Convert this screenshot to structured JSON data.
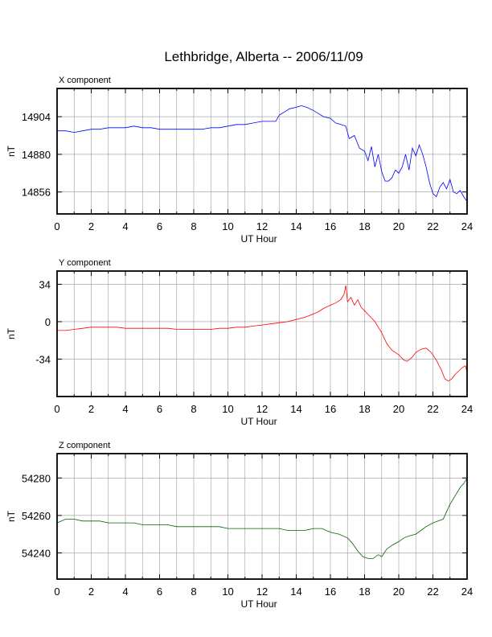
{
  "title": "Lethbridge, Alberta -- 2006/11/09",
  "chart_data": [
    {
      "type": "line",
      "panel_label": "X component",
      "xlabel": "UT Hour",
      "ylabel": "nT",
      "xlim": [
        0,
        24
      ],
      "ylim": [
        14842,
        14922
      ],
      "xticks": [
        0,
        2,
        4,
        6,
        8,
        10,
        12,
        14,
        16,
        18,
        20,
        22,
        24
      ],
      "yticks": [
        14856,
        14880,
        14904
      ],
      "grid": true,
      "color": "#0000ff",
      "x": [
        0,
        0.5,
        1,
        1.5,
        2,
        2.5,
        3,
        3.5,
        4,
        4.5,
        5,
        5.5,
        6,
        6.5,
        7,
        7.5,
        8,
        8.5,
        9,
        9.5,
        10,
        10.5,
        11,
        11.5,
        12,
        12.5,
        12.8,
        13,
        13.3,
        13.6,
        14,
        14.3,
        14.6,
        15,
        15.3,
        15.6,
        16,
        16.3,
        16.6,
        16.9,
        17.1,
        17.4,
        17.7,
        18,
        18.2,
        18.4,
        18.6,
        18.8,
        19.0,
        19.2,
        19.4,
        19.6,
        19.8,
        20.0,
        20.2,
        20.4,
        20.6,
        20.8,
        21.0,
        21.2,
        21.4,
        21.6,
        21.8,
        22.0,
        22.2,
        22.4,
        22.6,
        22.8,
        23.0,
        23.2,
        23.4,
        23.6,
        23.8,
        24
      ],
      "y": [
        14895,
        14895,
        14894,
        14895,
        14896,
        14896,
        14897,
        14897,
        14897,
        14898,
        14897,
        14897,
        14896,
        14896,
        14896,
        14896,
        14896,
        14896,
        14897,
        14897,
        14898,
        14899,
        14899,
        14900,
        14901,
        14901,
        14901,
        14905,
        14907,
        14909,
        14910,
        14911,
        14910,
        14908,
        14906,
        14904,
        14903,
        14900,
        14899,
        14898,
        14890,
        14892,
        14884,
        14882,
        14876,
        14885,
        14872,
        14880,
        14869,
        14863,
        14863,
        14865,
        14870,
        14868,
        14872,
        14880,
        14870,
        14884,
        14879,
        14886,
        14880,
        14872,
        14862,
        14855,
        14853,
        14859,
        14862,
        14858,
        14864,
        14856,
        14855,
        14857,
        14853,
        14850
      ]
    },
    {
      "type": "line",
      "panel_label": "Y component",
      "xlabel": "UT Hour",
      "ylabel": "nT",
      "xlim": [
        0,
        24
      ],
      "ylim": [
        -68,
        46
      ],
      "xticks": [
        0,
        2,
        4,
        6,
        8,
        10,
        12,
        14,
        16,
        18,
        20,
        22,
        24
      ],
      "yticks": [
        -34,
        0,
        34
      ],
      "grid": true,
      "color": "#ff0000",
      "x": [
        0,
        0.5,
        1,
        1.5,
        2,
        2.5,
        3,
        3.5,
        4,
        4.5,
        5,
        5.5,
        6,
        6.5,
        7,
        7.5,
        8,
        8.5,
        9,
        9.5,
        10,
        10.5,
        11,
        11.5,
        12,
        12.5,
        13,
        13.5,
        14,
        14.5,
        15,
        15.3,
        15.6,
        16,
        16.3,
        16.6,
        16.8,
        16.9,
        17.0,
        17.2,
        17.4,
        17.6,
        17.8,
        18.0,
        18.3,
        18.6,
        19.0,
        19.3,
        19.6,
        20.0,
        20.3,
        20.5,
        20.8,
        21.0,
        21.3,
        21.6,
        21.9,
        22.2,
        22.5,
        22.7,
        22.9,
        23.1,
        23.3,
        23.5,
        23.7,
        23.9,
        24
      ],
      "y": [
        -8,
        -8,
        -7,
        -6,
        -5,
        -5,
        -5,
        -5,
        -6,
        -6,
        -6,
        -6,
        -6,
        -6,
        -7,
        -7,
        -7,
        -7,
        -7,
        -6,
        -6,
        -5,
        -5,
        -4,
        -3,
        -2,
        -1,
        0,
        2,
        4,
        7,
        9,
        12,
        15,
        17,
        20,
        25,
        33,
        18,
        22,
        15,
        20,
        13,
        10,
        5,
        0,
        -10,
        -20,
        -26,
        -30,
        -35,
        -36,
        -32,
        -28,
        -25,
        -24,
        -28,
        -35,
        -44,
        -52,
        -54,
        -52,
        -48,
        -45,
        -42,
        -40,
        -46
      ]
    },
    {
      "type": "line",
      "panel_label": "Z component",
      "xlabel": "UT Hour",
      "ylabel": "nT",
      "xlim": [
        0,
        24
      ],
      "ylim": [
        54226,
        54293
      ],
      "xticks": [
        0,
        2,
        4,
        6,
        8,
        10,
        12,
        14,
        16,
        18,
        20,
        22,
        24
      ],
      "yticks": [
        54240,
        54260,
        54280
      ],
      "grid": true,
      "color": "#006400",
      "x": [
        0,
        0.5,
        1,
        1.5,
        2,
        2.5,
        3,
        3.5,
        4,
        4.5,
        5,
        5.5,
        6,
        6.5,
        7,
        7.5,
        8,
        8.5,
        9,
        9.5,
        10,
        10.5,
        11,
        11.5,
        12,
        12.5,
        13,
        13.5,
        14,
        14.5,
        15,
        15.5,
        16,
        16.5,
        17,
        17.3,
        17.6,
        17.9,
        18.2,
        18.5,
        18.8,
        19.0,
        19.3,
        19.6,
        20.0,
        20.3,
        20.6,
        21.0,
        21.3,
        21.6,
        22.0,
        22.3,
        22.6,
        22.8,
        23.0,
        23.2,
        23.4,
        23.6,
        23.8,
        24
      ],
      "y": [
        54256,
        54258,
        54258,
        54257,
        54257,
        54257,
        54256,
        54256,
        54256,
        54256,
        54255,
        54255,
        54255,
        54255,
        54254,
        54254,
        54254,
        54254,
        54254,
        54254,
        54253,
        54253,
        54253,
        54253,
        54253,
        54253,
        54253,
        54252,
        54252,
        54252,
        54253,
        54253,
        54251,
        54250,
        54248,
        54245,
        54241,
        54238,
        54237,
        54237,
        54239,
        54238,
        54242,
        54244,
        54246,
        54248,
        54249,
        54250,
        54252,
        54254,
        54256,
        54257,
        54258,
        54262,
        54266,
        54269,
        54272,
        54275,
        54277,
        54280
      ]
    }
  ]
}
